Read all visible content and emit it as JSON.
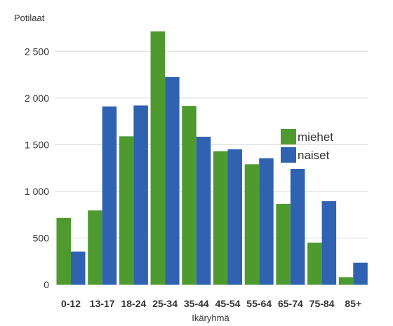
{
  "chart_data": {
    "type": "bar",
    "ylabel": "Potilaat",
    "xlabel": "Ikäryhmä",
    "categories": [
      "0-12",
      "13-17",
      "18-24",
      "25-34",
      "35-44",
      "45-54",
      "55-64",
      "65-74",
      "75-84",
      "85+"
    ],
    "series": [
      {
        "name": "miehet",
        "color": "#4e9a2f",
        "values": [
          715,
          795,
          1590,
          2715,
          1915,
          1430,
          1290,
          865,
          450,
          80
        ]
      },
      {
        "name": "naiset",
        "color": "#2f62b0",
        "values": [
          355,
          1910,
          1920,
          2225,
          1585,
          1450,
          1355,
          1240,
          895,
          235
        ]
      }
    ],
    "ylim": [
      0,
      2750
    ],
    "yticks": [
      0,
      500,
      1000,
      1500,
      2000,
      2500
    ],
    "ytick_labels": [
      "0",
      "500",
      "1 000",
      "1 500",
      "2 000",
      "2 500"
    ],
    "grid": true,
    "legend_position": "right"
  }
}
